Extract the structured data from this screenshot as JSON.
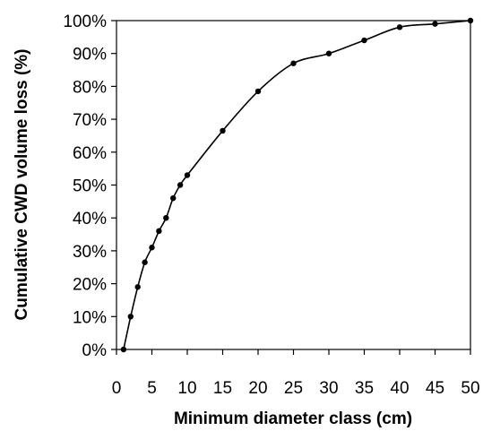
{
  "chart_data": {
    "type": "line",
    "title": "",
    "xlabel": "Minimum diameter class (cm)",
    "ylabel": "Cumulative CWD volume loss (%)",
    "xlim": [
      0,
      50
    ],
    "ylim": [
      0,
      100
    ],
    "x_ticks": [
      0,
      5,
      10,
      15,
      20,
      25,
      30,
      35,
      40,
      45,
      50
    ],
    "y_ticks": [
      0,
      10,
      20,
      30,
      40,
      50,
      60,
      70,
      80,
      90,
      100
    ],
    "x_tick_labels": [
      "0",
      "5",
      "10",
      "15",
      "20",
      "25",
      "30",
      "35",
      "40",
      "45",
      "50"
    ],
    "y_tick_labels": [
      "0%",
      "10%",
      "20%",
      "30%",
      "40%",
      "50%",
      "60%",
      "70%",
      "80%",
      "90%",
      "100%"
    ],
    "grid": false,
    "legend": "none",
    "series": [
      {
        "x": [
          1,
          2,
          3,
          4,
          5,
          6,
          7,
          8,
          9,
          10,
          15,
          20,
          25,
          30,
          35,
          40,
          45,
          50
        ],
        "y": [
          0,
          10,
          19,
          26.5,
          31,
          36,
          40,
          46,
          50,
          53,
          66.5,
          78.5,
          87,
          90,
          94,
          98,
          99,
          100
        ],
        "color": "#000000",
        "marker": "circle"
      }
    ]
  }
}
